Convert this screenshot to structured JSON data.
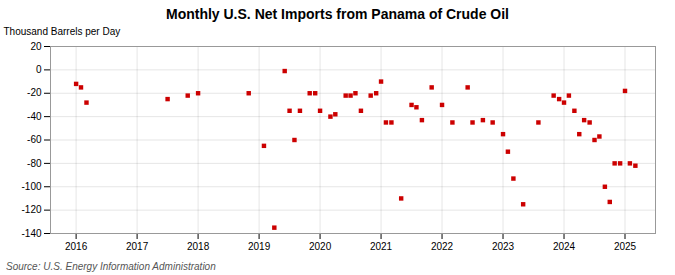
{
  "chart_data": {
    "type": "scatter",
    "title": "Monthly U.S. Net Imports from Panama of Crude Oil",
    "ylabel": "Thousand Barrels per Day",
    "source": "Source: U.S. Energy Information Administration",
    "color": "#cc0000",
    "marker": "square",
    "grid": true,
    "xlim": [
      2015.58,
      2025.5
    ],
    "xticks": [
      2016,
      2017,
      2018,
      2019,
      2020,
      2021,
      2022,
      2023,
      2024,
      2025
    ],
    "ylim": [
      -140,
      20
    ],
    "yticks": [
      20,
      0,
      -20,
      -40,
      -60,
      -80,
      -100,
      -120,
      -140
    ],
    "x": [
      2016.0,
      2016.08,
      2016.17,
      2017.5,
      2017.83,
      2018.0,
      2018.83,
      2019.08,
      2019.25,
      2019.42,
      2019.5,
      2019.58,
      2019.67,
      2019.83,
      2019.92,
      2020.0,
      2020.17,
      2020.25,
      2020.42,
      2020.5,
      2020.58,
      2020.67,
      2020.83,
      2020.92,
      2021.0,
      2021.08,
      2021.17,
      2021.33,
      2021.5,
      2021.58,
      2021.67,
      2021.83,
      2022.0,
      2022.17,
      2022.42,
      2022.5,
      2022.67,
      2022.83,
      2023.0,
      2023.08,
      2023.17,
      2023.33,
      2023.58,
      2023.83,
      2023.92,
      2024.0,
      2024.08,
      2024.17,
      2024.25,
      2024.33,
      2024.42,
      2024.5,
      2024.58,
      2024.67,
      2024.75,
      2024.83,
      2024.92,
      2025.0,
      2025.08,
      2025.17
    ],
    "values": [
      -12,
      -15,
      -28,
      -25,
      -22,
      -20,
      -20,
      -65,
      -135,
      -1,
      -35,
      -60,
      -35,
      -20,
      -20,
      -35,
      -40,
      -38,
      -22,
      -22,
      -20,
      -35,
      -22,
      -20,
      -10,
      -45,
      -45,
      -110,
      -30,
      -32,
      -43,
      -15,
      -30,
      -45,
      -15,
      -45,
      -43,
      -45,
      -55,
      -70,
      -93,
      -115,
      -45,
      -22,
      -25,
      -28,
      -22,
      -35,
      -55,
      -43,
      -45,
      -60,
      -57,
      -100,
      -113,
      -80,
      -80,
      -18,
      -80,
      -82
    ]
  }
}
